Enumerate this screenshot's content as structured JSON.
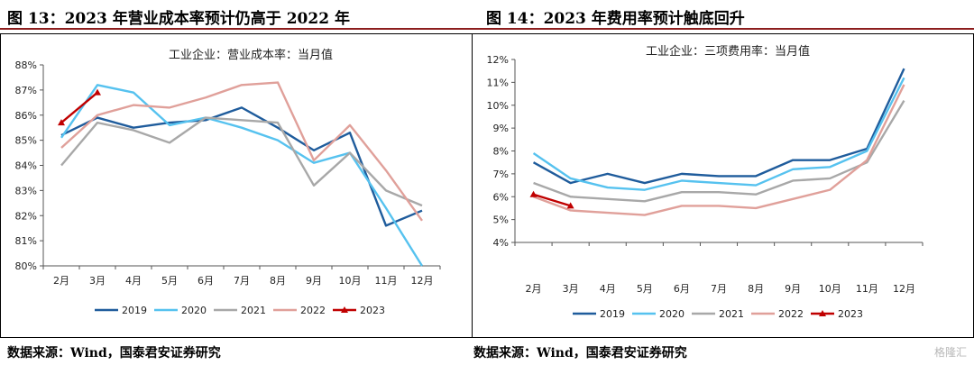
{
  "panels": [
    {
      "fig_title": "图 13：2023 年营业成本率预计仍高于 2022 年",
      "source": "数据来源：Wind，国泰君安证券研究"
    },
    {
      "fig_title": "图 14：2023 年费用率预计触底回升",
      "source": "数据来源：Wind，国泰君安证券研究"
    }
  ],
  "watermark": "格隆汇",
  "colors": {
    "2019": "#1f5c9c",
    "2020": "#56c2ef",
    "2021": "#a8a8a8",
    "2022": "#e0a09a",
    "2023": "#c00000",
    "rule": "#8c1d1d"
  },
  "chart_data": [
    {
      "type": "line",
      "title": "工业企业：营业成本率：当月值",
      "categories": [
        "2月",
        "3月",
        "4月",
        "5月",
        "6月",
        "7月",
        "8月",
        "9月",
        "10月",
        "11月",
        "12月"
      ],
      "ylim": [
        80,
        88
      ],
      "yticks": [
        80,
        81,
        82,
        83,
        84,
        85,
        86,
        87,
        88
      ],
      "ytick_labels": [
        "80%",
        "81%",
        "82%",
        "83%",
        "84%",
        "85%",
        "86%",
        "87%",
        "88%"
      ],
      "grid": false,
      "legend_position": "bottom",
      "series": [
        {
          "name": "2019",
          "values": [
            85.2,
            85.9,
            85.5,
            85.7,
            85.8,
            86.3,
            85.5,
            84.6,
            85.3,
            81.6,
            82.2
          ]
        },
        {
          "name": "2020",
          "values": [
            85.1,
            87.2,
            86.9,
            85.6,
            85.9,
            85.5,
            85.0,
            84.1,
            84.5,
            82.3,
            80.0
          ]
        },
        {
          "name": "2021",
          "values": [
            84.0,
            85.7,
            85.4,
            84.9,
            85.9,
            85.8,
            85.7,
            83.2,
            84.5,
            83.0,
            82.4
          ]
        },
        {
          "name": "2022",
          "values": [
            84.7,
            86.0,
            86.4,
            86.3,
            86.7,
            87.2,
            87.3,
            84.2,
            85.6,
            83.8,
            81.8
          ]
        },
        {
          "name": "2023",
          "values": [
            85.7,
            86.9,
            null,
            null,
            null,
            null,
            null,
            null,
            null,
            null,
            null
          ]
        }
      ]
    },
    {
      "type": "line",
      "title": "工业企业：三项费用率：当月值",
      "categories": [
        "2月",
        "3月",
        "4月",
        "5月",
        "6月",
        "7月",
        "8月",
        "9月",
        "10月",
        "11月",
        "12月"
      ],
      "ylim": [
        4,
        12
      ],
      "yticks": [
        4,
        5,
        6,
        7,
        8,
        9,
        10,
        11,
        12
      ],
      "ytick_labels": [
        "4%",
        "5%",
        "6%",
        "7%",
        "8%",
        "9%",
        "10%",
        "11%",
        "12%"
      ],
      "grid": false,
      "legend_position": "bottom",
      "series": [
        {
          "name": "2019",
          "values": [
            7.5,
            6.6,
            7.0,
            6.6,
            7.0,
            6.9,
            6.9,
            7.6,
            7.6,
            8.1,
            11.6
          ]
        },
        {
          "name": "2020",
          "values": [
            7.9,
            6.8,
            6.4,
            6.3,
            6.7,
            6.6,
            6.5,
            7.2,
            7.3,
            8.0,
            11.2
          ]
        },
        {
          "name": "2021",
          "values": [
            6.6,
            6.0,
            5.9,
            5.8,
            6.2,
            6.2,
            6.1,
            6.7,
            6.8,
            7.5,
            10.2
          ]
        },
        {
          "name": "2022",
          "values": [
            6.0,
            5.4,
            5.3,
            5.2,
            5.6,
            5.6,
            5.5,
            5.9,
            6.3,
            7.6,
            10.9
          ]
        },
        {
          "name": "2023",
          "values": [
            6.1,
            5.6,
            null,
            null,
            null,
            null,
            null,
            null,
            null,
            null,
            null
          ]
        }
      ]
    }
  ]
}
